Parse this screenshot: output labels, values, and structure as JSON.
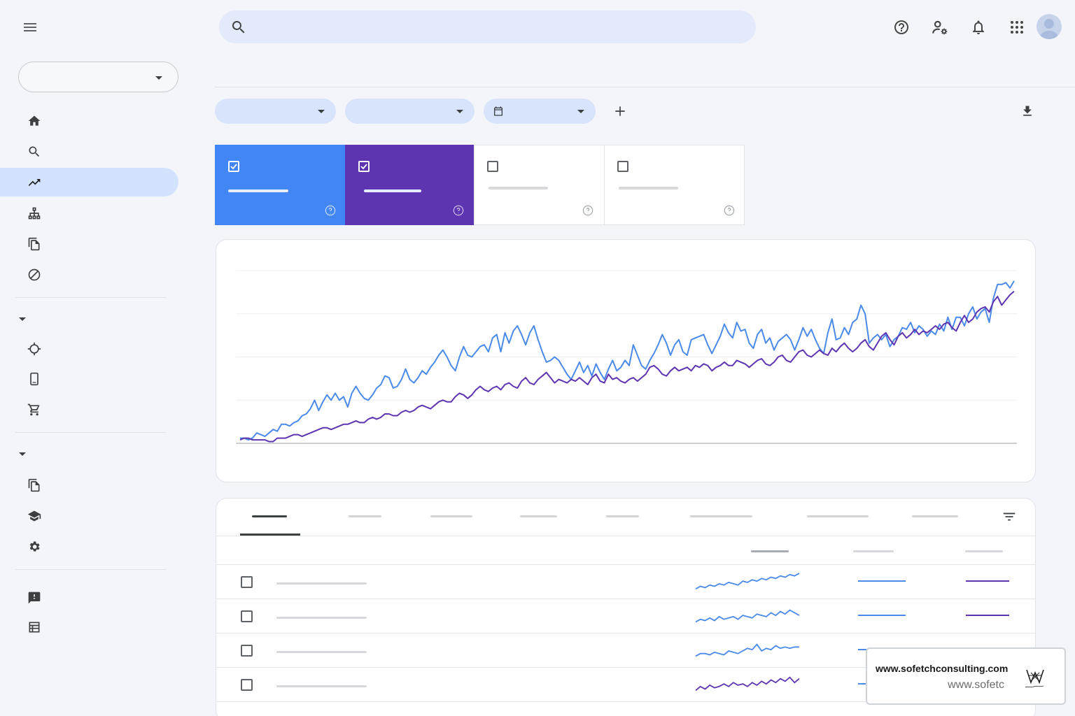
{
  "app": {
    "window_title": "",
    "search": {
      "value": "",
      "placeholder": ""
    },
    "header_title": ""
  },
  "property_selector": {
    "value": ""
  },
  "sidebar": {
    "items": [
      {
        "name": "home",
        "icon": "home-icon",
        "label": "",
        "active": false
      },
      {
        "name": "url-inspection",
        "icon": "search-icon",
        "label": "",
        "active": false
      },
      {
        "name": "performance",
        "icon": "trending-up-icon",
        "label": "",
        "active": true
      },
      {
        "name": "sitemaps",
        "icon": "sitemap-icon",
        "label": "",
        "active": false
      },
      {
        "name": "pages",
        "icon": "copy-icon",
        "label": "",
        "active": false
      },
      {
        "name": "removals",
        "icon": "block-icon",
        "label": "",
        "active": false
      }
    ],
    "section_two": [
      {
        "name": "core-web-vitals",
        "icon": "crosshair-icon",
        "label": ""
      },
      {
        "name": "mobile-usability",
        "icon": "smartphone-icon",
        "label": ""
      },
      {
        "name": "shopping",
        "icon": "cart-icon",
        "label": ""
      }
    ],
    "section_three": [
      {
        "name": "links",
        "icon": "copy-icon",
        "label": ""
      },
      {
        "name": "learning",
        "icon": "school-icon",
        "label": ""
      },
      {
        "name": "settings",
        "icon": "gear-icon",
        "label": ""
      }
    ],
    "footer": [
      {
        "name": "feedback",
        "icon": "feedback-icon",
        "label": ""
      },
      {
        "name": "about",
        "icon": "list-icon",
        "label": ""
      }
    ]
  },
  "filters": [
    {
      "name": "search-type",
      "label": ""
    },
    {
      "name": "date-range-preset",
      "label": ""
    },
    {
      "name": "date-range",
      "label": "",
      "icon": "calendar-icon"
    }
  ],
  "metrics": [
    {
      "name": "total-clicks",
      "label": "",
      "value": "",
      "checked": true,
      "color": "#4285f4"
    },
    {
      "name": "total-impressions",
      "label": "",
      "value": "",
      "checked": true,
      "color": "#5e35b1"
    },
    {
      "name": "average-ctr",
      "label": "",
      "value": "",
      "checked": false,
      "color": "#ffffff"
    },
    {
      "name": "average-position",
      "label": "",
      "value": "",
      "checked": false,
      "color": "#ffffff"
    }
  ],
  "chart_data": {
    "type": "line",
    "title": "",
    "xlabel": "",
    "ylabel": "",
    "ylim": [
      0,
      100
    ],
    "grid": true,
    "legend": "none",
    "series": [
      {
        "color": "#4a8ae8",
        "values": [
          3,
          3,
          2,
          3,
          6,
          5,
          4,
          6,
          8,
          7,
          11,
          11,
          10,
          12,
          13,
          16,
          17,
          20,
          25,
          19,
          24,
          28,
          25,
          29,
          25,
          27,
          21,
          29,
          33,
          29,
          26,
          25,
          28,
          32,
          34,
          39,
          38,
          32,
          33,
          37,
          43,
          37,
          35,
          38,
          42,
          40,
          44,
          47,
          51,
          54,
          50,
          45,
          42,
          50,
          56,
          51,
          50,
          53,
          56,
          57,
          53,
          61,
          63,
          53,
          64,
          58,
          65,
          68,
          63,
          57,
          64,
          68,
          60,
          53,
          47,
          48,
          50,
          48,
          44,
          40,
          37,
          42,
          47,
          41,
          45,
          39,
          46,
          41,
          37,
          43,
          48,
          42,
          44,
          48,
          45,
          57,
          51,
          45,
          43,
          48,
          52,
          57,
          63,
          58,
          51,
          57,
          60,
          53,
          51,
          60,
          61,
          62,
          63,
          57,
          52,
          57,
          62,
          69,
          64,
          61,
          70,
          65,
          66,
          58,
          55,
          63,
          66,
          58,
          61,
          54,
          59,
          61,
          63,
          60,
          54,
          60,
          67,
          62,
          66,
          60,
          55,
          52,
          64,
          72,
          60,
          61,
          67,
          63,
          70,
          72,
          80,
          75,
          58,
          61,
          63,
          60,
          63,
          56,
          60,
          62,
          67,
          66,
          70,
          64,
          68,
          66,
          62,
          65,
          63,
          69,
          65,
          73,
          66,
          73,
          73,
          68,
          75,
          79,
          72,
          76,
          78,
          70,
          84,
          92,
          92,
          93,
          90,
          94
        ],
        "x_note": ""
      },
      {
        "color": "#5e35b1",
        "values": [
          2,
          3,
          3,
          2,
          2,
          2,
          2,
          1,
          1,
          3,
          3,
          3,
          4,
          5,
          5,
          4,
          5,
          6,
          7,
          8,
          9,
          9,
          8,
          9,
          10,
          11,
          11,
          12,
          13,
          12,
          12,
          14,
          15,
          14,
          15,
          17,
          17,
          16,
          16,
          18,
          19,
          18,
          19,
          21,
          22,
          21,
          20,
          22,
          24,
          25,
          24,
          24,
          27,
          29,
          28,
          26,
          28,
          31,
          33,
          31,
          30,
          32,
          33,
          31,
          34,
          35,
          33,
          32,
          36,
          38,
          35,
          34,
          37,
          39,
          41,
          38,
          35,
          37,
          36,
          35,
          37,
          36,
          38,
          36,
          34,
          38,
          40,
          36,
          35,
          40,
          37,
          38,
          36,
          35,
          37,
          38,
          36,
          38,
          40,
          44,
          45,
          43,
          40,
          39,
          42,
          44,
          42,
          43,
          44,
          42,
          45,
          44,
          46,
          45,
          42,
          44,
          45,
          47,
          45,
          45,
          48,
          47,
          46,
          44,
          46,
          48,
          49,
          46,
          45,
          47,
          50,
          51,
          48,
          47,
          50,
          53,
          54,
          51,
          50,
          52,
          54,
          52,
          51,
          55,
          53,
          56,
          58,
          55,
          53,
          55,
          58,
          60,
          56,
          54,
          58,
          62,
          64,
          60,
          57,
          62,
          64,
          61,
          63,
          66,
          63,
          65,
          64,
          66,
          68,
          66,
          69,
          70,
          67,
          65,
          70,
          74,
          70,
          72,
          76,
          78,
          79,
          76,
          82,
          85,
          80,
          83,
          86,
          88
        ]
      }
    ]
  },
  "table": {
    "tabs": [
      {
        "name": "queries",
        "label": "",
        "active": true
      },
      {
        "name": "pages",
        "label": "",
        "active": false
      },
      {
        "name": "countries",
        "label": "",
        "active": false
      },
      {
        "name": "devices",
        "label": "",
        "active": false
      },
      {
        "name": "search-appearance",
        "label": "",
        "active": false
      },
      {
        "name": "dates",
        "label": "",
        "active": false
      },
      {
        "name": "tab-7",
        "label": "",
        "active": false
      },
      {
        "name": "tab-8",
        "label": "",
        "active": false
      }
    ],
    "columns": [
      {
        "name": "trend",
        "label": ""
      },
      {
        "name": "clicks",
        "label": ""
      },
      {
        "name": "impressions",
        "label": ""
      }
    ],
    "rows": [
      {
        "label": "",
        "trend_color": "#4a8ae8",
        "trend": [
          2,
          4,
          3,
          5,
          4,
          6,
          5,
          7,
          6,
          5,
          8,
          7,
          9,
          8,
          10,
          9,
          11,
          10,
          12,
          11,
          13,
          12,
          14
        ]
      },
      {
        "label": "",
        "trend_color": "#4a8ae8",
        "trend": [
          3,
          5,
          4,
          6,
          4,
          7,
          5,
          6,
          7,
          5,
          8,
          7,
          6,
          9,
          8,
          7,
          10,
          8,
          11,
          9,
          12,
          10,
          8
        ]
      },
      {
        "label": "",
        "trend_color": "#4a8ae8",
        "trend": [
          3,
          5,
          5,
          4,
          6,
          5,
          4,
          7,
          6,
          5,
          7,
          9,
          8,
          12,
          7,
          9,
          8,
          11,
          9,
          10,
          9,
          10,
          10
        ]
      },
      {
        "label": "",
        "trend_color": "#5e35b1",
        "trend": [
          3,
          6,
          4,
          7,
          5,
          6,
          8,
          6,
          9,
          7,
          8,
          6,
          9,
          7,
          10,
          8,
          11,
          9,
          12,
          10,
          13,
          9,
          12
        ]
      }
    ]
  },
  "watermark": {
    "line1": "www.sofetchconsulting.com",
    "line2": "www.sofetc"
  }
}
